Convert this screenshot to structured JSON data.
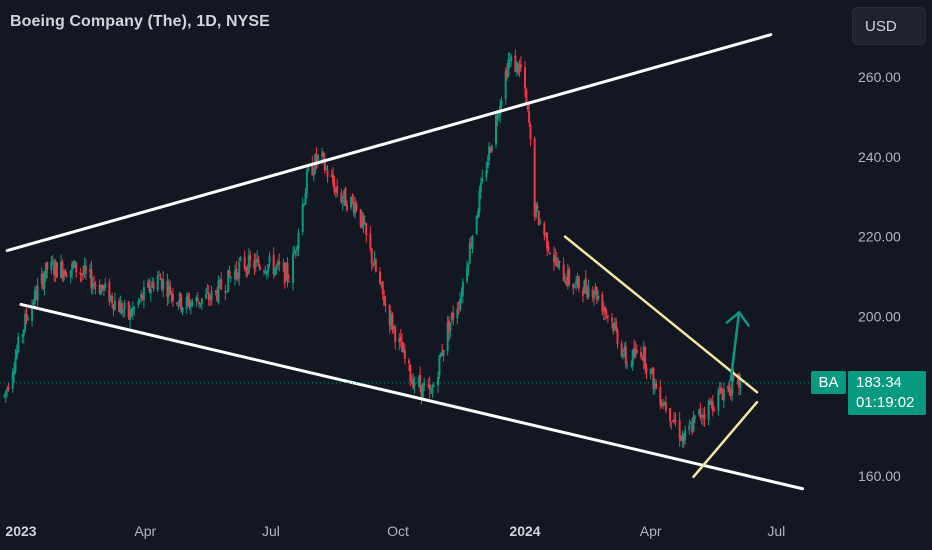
{
  "header": {
    "title": "Boeing Company (The), 1D, NYSE"
  },
  "toolbar": {
    "currency_label": "USD"
  },
  "last_price": {
    "ticker": "BA",
    "price": "183.34",
    "countdown": "01:19:02"
  },
  "colors": {
    "background": "#131722",
    "up": "#089981",
    "down": "#f23645",
    "grid_text": "#b2b5be",
    "trendline": "#ffffff",
    "triangle": "#f5e6a0"
  },
  "chart_data": {
    "type": "candlestick",
    "symbol": "BA",
    "timeframe": "1D",
    "exchange": "NYSE",
    "ylim": [
      154,
      270
    ],
    "xlim": [
      "2022-12-20",
      "2024-07-30"
    ],
    "y_ticks": [
      "160.00",
      "200.00",
      "220.00",
      "240.00",
      "260.00"
    ],
    "x_ticks": [
      {
        "date": "2023-01-01",
        "label": "2023",
        "bold": true
      },
      {
        "date": "2023-04-01",
        "label": "Apr",
        "bold": false
      },
      {
        "date": "2023-07-01",
        "label": "Jul",
        "bold": false
      },
      {
        "date": "2023-10-01",
        "label": "Oct",
        "bold": false
      },
      {
        "date": "2024-01-01",
        "label": "2024",
        "bold": true
      },
      {
        "date": "2024-04-01",
        "label": "Apr",
        "bold": false
      },
      {
        "date": "2024-07-01",
        "label": "Jul",
        "bold": false
      }
    ],
    "last_price": 183.34,
    "price_path": [
      [
        "2022-12-20",
        180
      ],
      [
        "2023-01-05",
        200
      ],
      [
        "2023-01-20",
        212
      ],
      [
        "2023-02-10",
        212
      ],
      [
        "2023-03-01",
        207
      ],
      [
        "2023-03-20",
        200
      ],
      [
        "2023-04-10",
        210
      ],
      [
        "2023-04-28",
        203
      ],
      [
        "2023-05-20",
        205
      ],
      [
        "2023-06-10",
        213
      ],
      [
        "2023-06-30",
        213
      ],
      [
        "2023-07-15",
        210
      ],
      [
        "2023-07-28",
        236
      ],
      [
        "2023-08-05",
        240
      ],
      [
        "2023-08-20",
        230
      ],
      [
        "2023-09-01",
        228
      ],
      [
        "2023-09-20",
        205
      ],
      [
        "2023-10-10",
        185
      ],
      [
        "2023-10-25",
        180
      ],
      [
        "2023-11-05",
        196
      ],
      [
        "2023-11-15",
        205
      ],
      [
        "2023-11-28",
        228
      ],
      [
        "2023-12-10",
        248
      ],
      [
        "2023-12-20",
        264
      ],
      [
        "2023-12-29",
        262
      ],
      [
        "2024-01-04",
        248
      ],
      [
        "2024-01-08",
        227
      ],
      [
        "2024-01-25",
        212
      ],
      [
        "2024-02-05",
        208
      ],
      [
        "2024-02-20",
        207
      ],
      [
        "2024-03-05",
        198
      ],
      [
        "2024-03-15",
        188
      ],
      [
        "2024-03-25",
        192
      ],
      [
        "2024-04-05",
        182
      ],
      [
        "2024-04-15",
        176
      ],
      [
        "2024-04-25",
        169
      ],
      [
        "2024-05-05",
        175
      ],
      [
        "2024-05-15",
        178
      ],
      [
        "2024-05-25",
        182
      ],
      [
        "2024-06-05",
        183.34
      ]
    ],
    "drawings": [
      {
        "type": "trendline",
        "name": "upper-channel-line",
        "color": "#ffffff",
        "from": [
          "2022-12-22",
          216.5
        ],
        "to": [
          "2024-06-27",
          270.6
        ]
      },
      {
        "type": "trendline",
        "name": "lower-channel-line",
        "color": "#ffffff",
        "from": [
          "2023-01-01",
          203.0
        ],
        "to": [
          "2024-07-20",
          156.8
        ]
      },
      {
        "type": "trendline",
        "name": "triangle-upper-line",
        "color": "#f5e6a0",
        "from": [
          "2024-01-30",
          220.0
        ],
        "to": [
          "2024-06-17",
          181.0
        ]
      },
      {
        "type": "trendline",
        "name": "triangle-lower-line",
        "color": "#f5e6a0",
        "from": [
          "2024-05-02",
          159.8
        ],
        "to": [
          "2024-06-17",
          178.5
        ]
      },
      {
        "type": "arrow",
        "name": "breakout-arrow",
        "color": "#089981",
        "from": [
          "2024-05-29",
          184.0
        ],
        "to": [
          "2024-06-04",
          201.0
        ]
      }
    ]
  }
}
